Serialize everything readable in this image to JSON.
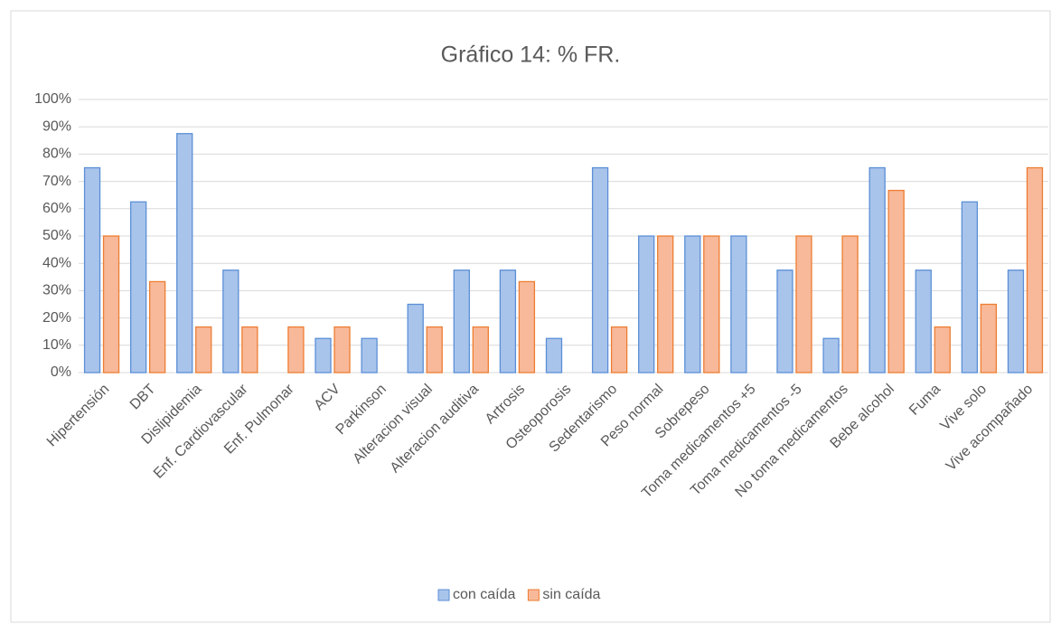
{
  "chart_data": {
    "type": "bar",
    "title": "Gráfico 14: % FR.",
    "categories": [
      "Hipertensión",
      "DBT",
      "Dislipidemia",
      "Enf. Cardiovascular",
      "Enf. Pulmonar",
      "ACV",
      "Parkinson",
      "Alteracion visual",
      "Alteracion auditiva",
      "Artrosis",
      "Osteoporosis",
      "Sedentarismo",
      "Peso normal",
      "Sobrepeso",
      "Toma medicamentos +5",
      "Toma medicamentos -5",
      "No toma medicamentos",
      "Bebe alcohol",
      "Fuma",
      "Vive solo",
      "Vive acompañado"
    ],
    "series": [
      {
        "name": "con caída",
        "color": "#a9c4eb",
        "stroke": "#5b8fd6",
        "values": [
          75,
          62.5,
          87.5,
          37.5,
          0,
          12.5,
          12.5,
          25,
          37.5,
          37.5,
          12.5,
          75,
          50,
          50,
          50,
          37.5,
          12.5,
          75,
          37.5,
          62.5,
          37.5
        ]
      },
      {
        "name": "sin caída",
        "color": "#f8b99a",
        "stroke": "#ed7d31",
        "values": [
          50,
          33.3,
          16.7,
          16.7,
          16.7,
          16.7,
          0,
          16.7,
          16.7,
          33.3,
          0,
          16.7,
          50,
          50,
          0,
          50,
          50,
          66.7,
          16.7,
          25,
          75
        ]
      }
    ],
    "ylim": [
      0,
      100
    ],
    "yticks": [
      {
        "value": 0,
        "label": "0%"
      },
      {
        "value": 10,
        "label": "10%"
      },
      {
        "value": 20,
        "label": "20%"
      },
      {
        "value": 30,
        "label": "30%"
      },
      {
        "value": 40,
        "label": "40%"
      },
      {
        "value": 50,
        "label": "50%"
      },
      {
        "value": 60,
        "label": "60%"
      },
      {
        "value": 70,
        "label": "70%"
      },
      {
        "value": 80,
        "label": "80%"
      },
      {
        "value": 90,
        "label": "90%"
      },
      {
        "value": 100,
        "label": "100%"
      }
    ],
    "grid": true,
    "legend": "bottom"
  }
}
